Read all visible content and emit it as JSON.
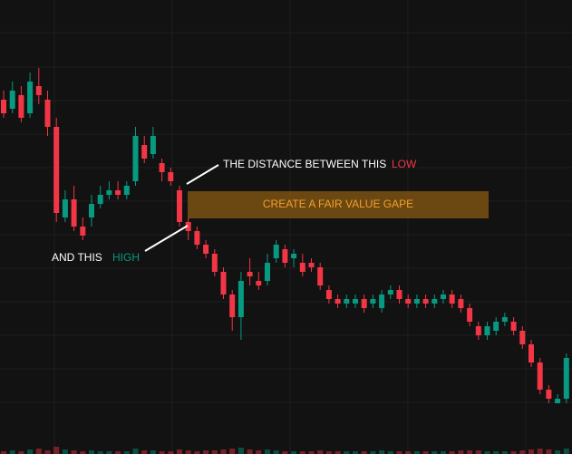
{
  "chart_data": {
    "type": "candlestick",
    "ylim": [
      0,
      100
    ],
    "colors": {
      "up": "#089981",
      "down": "#f23645"
    },
    "open": [
      78,
      76,
      79,
      75,
      81,
      78,
      72,
      52,
      56,
      50,
      52,
      55,
      57,
      58,
      57,
      60,
      68,
      66,
      64,
      62,
      58,
      51,
      49,
      46,
      44,
      40,
      35,
      30,
      40,
      38,
      38,
      43,
      45,
      43,
      42,
      42,
      41,
      36,
      34,
      33,
      33,
      34,
      33,
      32,
      35,
      36,
      34,
      33,
      34,
      33,
      34,
      35,
      34,
      32,
      28,
      26,
      27,
      29,
      29,
      27,
      24,
      20,
      14,
      11,
      12
    ],
    "high": [
      80,
      82,
      81,
      84,
      85,
      80,
      74,
      58,
      59,
      52,
      57,
      59,
      60,
      60,
      60,
      72,
      70,
      72,
      65,
      63,
      59,
      52,
      50,
      47,
      45,
      41,
      36,
      40,
      43,
      40,
      44,
      47,
      46,
      45,
      44,
      43,
      42,
      37,
      35,
      35,
      35,
      35,
      35,
      36,
      37,
      37,
      35,
      35,
      35,
      35,
      36,
      36,
      35,
      33,
      29,
      29,
      30,
      31,
      30,
      28,
      25,
      21,
      15,
      13,
      22
    ],
    "low": [
      74,
      75,
      73,
      74,
      77,
      70,
      51,
      51,
      49,
      47,
      50,
      54,
      56,
      56,
      56,
      59,
      64,
      65,
      60,
      59,
      50,
      47,
      45,
      43,
      39,
      34,
      27,
      25,
      37,
      36,
      37,
      42,
      41,
      41,
      39,
      40,
      36,
      33,
      32,
      32,
      32,
      31,
      32,
      31,
      34,
      33,
      32,
      32,
      32,
      32,
      33,
      32,
      31,
      28,
      25,
      25,
      26,
      28,
      26,
      23,
      19,
      13,
      11,
      11,
      11
    ],
    "close": [
      75,
      80,
      74,
      82,
      79,
      72,
      53,
      56,
      50,
      48,
      55,
      57,
      58,
      57,
      59,
      70,
      65,
      70,
      62,
      60,
      51,
      49,
      46,
      44,
      40,
      35,
      30,
      38,
      39,
      37,
      42,
      46,
      42,
      44,
      40,
      41,
      37,
      34,
      33,
      34,
      34,
      32,
      34,
      35,
      36,
      34,
      33,
      34,
      33,
      34,
      35,
      33,
      32,
      29,
      26,
      28,
      29,
      30,
      27,
      24,
      20,
      14,
      12,
      12,
      21
    ],
    "volume": [
      3,
      4,
      3,
      5,
      6,
      4,
      8,
      5,
      4,
      3,
      4,
      3,
      3,
      3,
      3,
      6,
      4,
      4,
      3,
      3,
      5,
      4,
      3,
      4,
      4,
      5,
      6,
      7,
      5,
      4,
      5,
      4,
      3,
      3,
      3,
      3,
      4,
      3,
      3,
      3,
      3,
      3,
      3,
      4,
      3,
      3,
      3,
      3,
      3,
      3,
      3,
      3,
      4,
      4,
      4,
      3,
      3,
      3,
      3,
      4,
      5,
      6,
      5,
      4,
      6
    ],
    "vlim": [
      0,
      100
    ],
    "annotations": {
      "top_text": "THE DISTANCE BETWEEN THIS",
      "top_word": "LOW",
      "bottom_text": "AND THIS",
      "bottom_word": "HIGH",
      "box_text": "CREATE A FAIR VALUE GAPE"
    }
  }
}
